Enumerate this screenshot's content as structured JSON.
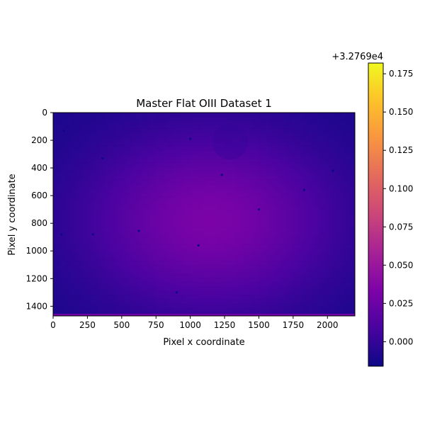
{
  "chart_data": {
    "type": "heatmap",
    "title": "Master Flat OIII Dataset 1",
    "xlabel": "Pixel x coordinate",
    "ylabel": "Pixel y coordinate",
    "x_range": [
      0,
      2200
    ],
    "y_range": [
      0,
      1470
    ],
    "y_inverted": true,
    "x_ticks": [
      0,
      250,
      500,
      750,
      1000,
      1250,
      1500,
      1750,
      2000
    ],
    "y_ticks": [
      0,
      200,
      400,
      600,
      800,
      1000,
      1200,
      1400
    ],
    "colormap": "plasma",
    "grid": false,
    "colorbar": {
      "offset_label": "+3.2769e4",
      "range": [
        -0.016,
        0.182
      ],
      "ticks": [
        0.0,
        0.025,
        0.05,
        0.075,
        0.1,
        0.125,
        0.15,
        0.175
      ],
      "tick_labels": [
        "0.000",
        "0.025",
        "0.050",
        "0.075",
        "0.100",
        "0.125",
        "0.150",
        "0.175"
      ]
    },
    "field": {
      "center": [
        1150,
        780
      ],
      "center_value": 0.032,
      "edge_value": -0.012,
      "radius_x": 1150,
      "radius_y": 820,
      "bottom_row_value": 0.028
    },
    "dust_motes": [
      {
        "x": 80,
        "y": 130
      },
      {
        "x": 1000,
        "y": 190
      },
      {
        "x": 1230,
        "y": 450
      },
      {
        "x": 1060,
        "y": 960
      },
      {
        "x": 625,
        "y": 855
      },
      {
        "x": 290,
        "y": 880
      },
      {
        "x": 1830,
        "y": 560
      },
      {
        "x": 2040,
        "y": 420
      },
      {
        "x": 60,
        "y": 880
      },
      {
        "x": 360,
        "y": 330
      },
      {
        "x": 1500,
        "y": 700
      },
      {
        "x": 900,
        "y": 1300
      }
    ],
    "vignette_spot": {
      "x": 1290,
      "y": 210,
      "r": 130
    }
  }
}
